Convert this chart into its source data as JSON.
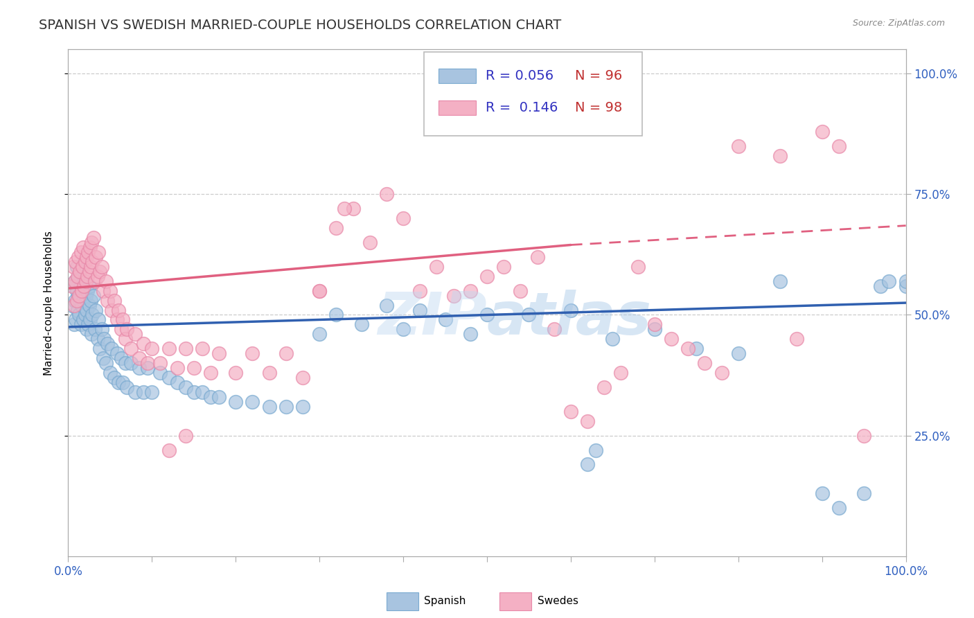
{
  "title": "SPANISH VS SWEDISH MARRIED-COUPLE HOUSEHOLDS CORRELATION CHART",
  "source": "Source: ZipAtlas.com",
  "ylabel": "Married-couple Households",
  "xmin": 0.0,
  "xmax": 1.0,
  "ymin": 0.0,
  "ymax": 1.0,
  "spanish_color": "#a8c4e0",
  "spanish_edge_color": "#7aaad0",
  "swedes_color": "#f4b0c4",
  "swedes_edge_color": "#e888a8",
  "spanish_line_color": "#3060b0",
  "swedes_line_color": "#e06080",
  "R_spanish": 0.056,
  "N_spanish": 96,
  "R_swedes": 0.146,
  "N_swedes": 98,
  "legend_R_color": "#3030c0",
  "legend_N_color": "#c03030",
  "watermark": "ZIPAtlas",
  "title_fontsize": 14,
  "axis_label_fontsize": 11,
  "tick_fontsize": 12,
  "legend_fontsize": 14,
  "spanish_x": [
    0.005,
    0.006,
    0.007,
    0.008,
    0.008,
    0.009,
    0.01,
    0.01,
    0.011,
    0.012,
    0.012,
    0.013,
    0.014,
    0.015,
    0.015,
    0.016,
    0.017,
    0.018,
    0.018,
    0.019,
    0.02,
    0.021,
    0.022,
    0.022,
    0.023,
    0.024,
    0.025,
    0.025,
    0.026,
    0.027,
    0.028,
    0.029,
    0.03,
    0.032,
    0.033,
    0.035,
    0.036,
    0.038,
    0.04,
    0.042,
    0.043,
    0.045,
    0.047,
    0.05,
    0.052,
    0.055,
    0.058,
    0.06,
    0.063,
    0.065,
    0.068,
    0.07,
    0.075,
    0.08,
    0.085,
    0.09,
    0.095,
    0.1,
    0.11,
    0.12,
    0.13,
    0.14,
    0.15,
    0.16,
    0.17,
    0.18,
    0.2,
    0.22,
    0.24,
    0.26,
    0.28,
    0.3,
    0.32,
    0.35,
    0.38,
    0.4,
    0.42,
    0.45,
    0.48,
    0.5,
    0.55,
    0.6,
    0.65,
    0.7,
    0.75,
    0.8,
    0.85,
    0.9,
    0.92,
    0.95,
    0.97,
    0.98,
    1.0,
    1.0,
    0.62,
    0.63
  ],
  "spanish_y": [
    0.52,
    0.56,
    0.48,
    0.53,
    0.57,
    0.49,
    0.55,
    0.6,
    0.51,
    0.54,
    0.58,
    0.5,
    0.53,
    0.56,
    0.48,
    0.52,
    0.55,
    0.49,
    0.53,
    0.57,
    0.5,
    0.54,
    0.47,
    0.51,
    0.55,
    0.48,
    0.52,
    0.56,
    0.49,
    0.53,
    0.46,
    0.5,
    0.54,
    0.47,
    0.51,
    0.45,
    0.49,
    0.43,
    0.47,
    0.41,
    0.45,
    0.4,
    0.44,
    0.38,
    0.43,
    0.37,
    0.42,
    0.36,
    0.41,
    0.36,
    0.4,
    0.35,
    0.4,
    0.34,
    0.39,
    0.34,
    0.39,
    0.34,
    0.38,
    0.37,
    0.36,
    0.35,
    0.34,
    0.34,
    0.33,
    0.33,
    0.32,
    0.32,
    0.31,
    0.31,
    0.31,
    0.46,
    0.5,
    0.48,
    0.52,
    0.47,
    0.51,
    0.49,
    0.46,
    0.5,
    0.5,
    0.51,
    0.45,
    0.47,
    0.43,
    0.42,
    0.57,
    0.13,
    0.1,
    0.13,
    0.56,
    0.57,
    0.56,
    0.57,
    0.19,
    0.22
  ],
  "swedes_x": [
    0.005,
    0.006,
    0.007,
    0.008,
    0.009,
    0.01,
    0.011,
    0.012,
    0.013,
    0.014,
    0.015,
    0.016,
    0.017,
    0.018,
    0.019,
    0.02,
    0.021,
    0.022,
    0.023,
    0.024,
    0.025,
    0.026,
    0.027,
    0.028,
    0.029,
    0.03,
    0.032,
    0.033,
    0.035,
    0.036,
    0.038,
    0.04,
    0.042,
    0.045,
    0.047,
    0.05,
    0.052,
    0.055,
    0.058,
    0.06,
    0.063,
    0.065,
    0.068,
    0.07,
    0.075,
    0.08,
    0.085,
    0.09,
    0.095,
    0.1,
    0.11,
    0.12,
    0.13,
    0.14,
    0.15,
    0.16,
    0.17,
    0.18,
    0.2,
    0.22,
    0.24,
    0.26,
    0.28,
    0.3,
    0.32,
    0.34,
    0.36,
    0.38,
    0.4,
    0.42,
    0.44,
    0.46,
    0.48,
    0.5,
    0.52,
    0.54,
    0.56,
    0.58,
    0.6,
    0.62,
    0.64,
    0.66,
    0.68,
    0.7,
    0.72,
    0.74,
    0.76,
    0.78,
    0.8,
    0.85,
    0.87,
    0.9,
    0.92,
    0.95,
    0.12,
    0.14,
    0.3,
    0.33
  ],
  "swedes_y": [
    0.56,
    0.6,
    0.52,
    0.57,
    0.61,
    0.53,
    0.58,
    0.62,
    0.54,
    0.59,
    0.63,
    0.55,
    0.6,
    0.64,
    0.56,
    0.61,
    0.57,
    0.62,
    0.58,
    0.63,
    0.59,
    0.64,
    0.6,
    0.65,
    0.61,
    0.66,
    0.57,
    0.62,
    0.58,
    0.63,
    0.59,
    0.6,
    0.55,
    0.57,
    0.53,
    0.55,
    0.51,
    0.53,
    0.49,
    0.51,
    0.47,
    0.49,
    0.45,
    0.47,
    0.43,
    0.46,
    0.41,
    0.44,
    0.4,
    0.43,
    0.4,
    0.43,
    0.39,
    0.43,
    0.39,
    0.43,
    0.38,
    0.42,
    0.38,
    0.42,
    0.38,
    0.42,
    0.37,
    0.55,
    0.68,
    0.72,
    0.65,
    0.75,
    0.7,
    0.55,
    0.6,
    0.54,
    0.55,
    0.58,
    0.6,
    0.55,
    0.62,
    0.47,
    0.3,
    0.28,
    0.35,
    0.38,
    0.6,
    0.48,
    0.45,
    0.43,
    0.4,
    0.38,
    0.85,
    0.83,
    0.45,
    0.88,
    0.85,
    0.25,
    0.22,
    0.25,
    0.55,
    0.72
  ]
}
